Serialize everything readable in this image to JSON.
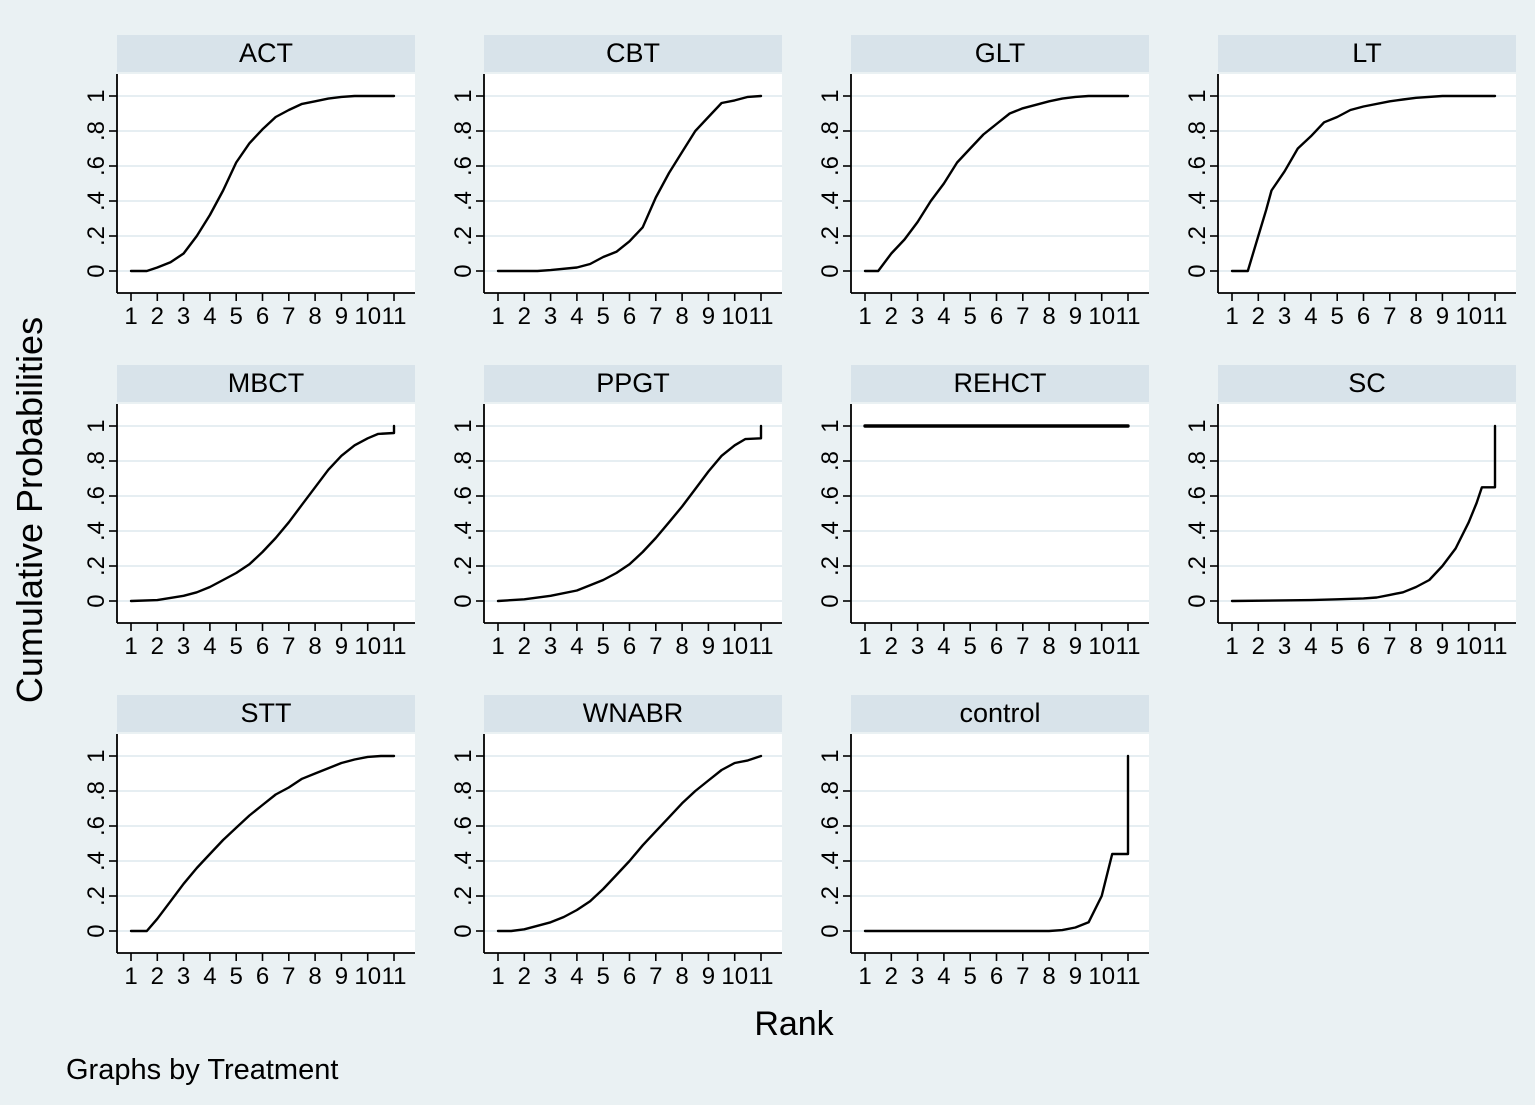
{
  "figure": {
    "ylabel": "Cumulative Probabilities",
    "xlabel": "Rank",
    "note": "Graphs by Treatment",
    "layout": {
      "rows": 3,
      "cols": 4,
      "panel_count": 11
    }
  },
  "axes": {
    "x_range": [
      1,
      11
    ],
    "y_range": [
      0,
      1
    ],
    "grid": true,
    "x_tick_values": [
      1,
      2,
      3,
      4,
      5,
      6,
      7,
      8,
      9,
      10,
      11
    ],
    "x_tick_labels": [
      "1",
      "2",
      "3",
      "4",
      "5",
      "6",
      "7",
      "8",
      "9",
      "10",
      "11"
    ],
    "y_tick_values": [
      0,
      0.2,
      0.4,
      0.6,
      0.8,
      1
    ],
    "y_tick_labels": [
      "0",
      ".2",
      ".4",
      ".6",
      ".8",
      "1"
    ],
    "y_tick_angle_deg": 90
  },
  "colors": {
    "background": "#eaf1f3",
    "panel_title_bg": "#d8e3ea",
    "plot_bg": "#ffffff",
    "gridline": "#dde9ed",
    "axis": "#000000",
    "line": "#000000"
  },
  "chart_data": [
    {
      "type": "line",
      "title": "ACT",
      "xlabel": "Rank",
      "ylabel": "Cumulative Probabilities",
      "points": [
        [
          1,
          0
        ],
        [
          1.6,
          0
        ],
        [
          2,
          0.02
        ],
        [
          2.5,
          0.05
        ],
        [
          3,
          0.1
        ],
        [
          3.5,
          0.2
        ],
        [
          4,
          0.32
        ],
        [
          4.5,
          0.46
        ],
        [
          5,
          0.62
        ],
        [
          5.5,
          0.73
        ],
        [
          6,
          0.81
        ],
        [
          6.5,
          0.88
        ],
        [
          7,
          0.92
        ],
        [
          7.5,
          0.955
        ],
        [
          8,
          0.97
        ],
        [
          8.5,
          0.985
        ],
        [
          9,
          0.995
        ],
        [
          9.5,
          1
        ],
        [
          11,
          1
        ]
      ]
    },
    {
      "type": "line",
      "title": "CBT",
      "xlabel": "Rank",
      "ylabel": "Cumulative Probabilities",
      "points": [
        [
          1,
          0
        ],
        [
          2.5,
          0
        ],
        [
          3,
          0.005
        ],
        [
          4,
          0.02
        ],
        [
          4.5,
          0.04
        ],
        [
          5,
          0.08
        ],
        [
          5.5,
          0.11
        ],
        [
          6,
          0.17
        ],
        [
          6.5,
          0.25
        ],
        [
          7,
          0.42
        ],
        [
          7.5,
          0.56
        ],
        [
          8,
          0.68
        ],
        [
          8.5,
          0.8
        ],
        [
          9,
          0.88
        ],
        [
          9.5,
          0.96
        ],
        [
          10,
          0.975
        ],
        [
          10.5,
          0.995
        ],
        [
          11,
          1
        ]
      ]
    },
    {
      "type": "line",
      "title": "GLT",
      "xlabel": "Rank",
      "ylabel": "Cumulative Probabilities",
      "points": [
        [
          1,
          0
        ],
        [
          1.5,
          0
        ],
        [
          2,
          0.1
        ],
        [
          2.5,
          0.18
        ],
        [
          3,
          0.28
        ],
        [
          3.5,
          0.4
        ],
        [
          4,
          0.5
        ],
        [
          4.5,
          0.62
        ],
        [
          5,
          0.7
        ],
        [
          5.5,
          0.78
        ],
        [
          6,
          0.84
        ],
        [
          6.5,
          0.9
        ],
        [
          7,
          0.93
        ],
        [
          7.5,
          0.95
        ],
        [
          8,
          0.97
        ],
        [
          8.5,
          0.985
        ],
        [
          9,
          0.995
        ],
        [
          9.5,
          1
        ],
        [
          11,
          1
        ]
      ]
    },
    {
      "type": "line",
      "title": "LT",
      "xlabel": "Rank",
      "ylabel": "Cumulative Probabilities",
      "points": [
        [
          1,
          0
        ],
        [
          1.6,
          0
        ],
        [
          2,
          0.2
        ],
        [
          2.3,
          0.35
        ],
        [
          2.5,
          0.46
        ],
        [
          3,
          0.57
        ],
        [
          3.5,
          0.7
        ],
        [
          4,
          0.77
        ],
        [
          4.5,
          0.85
        ],
        [
          5,
          0.88
        ],
        [
          5.5,
          0.92
        ],
        [
          6,
          0.94
        ],
        [
          7,
          0.97
        ],
        [
          7.5,
          0.98
        ],
        [
          8,
          0.99
        ],
        [
          9,
          1
        ],
        [
          11,
          1
        ]
      ]
    },
    {
      "type": "line",
      "title": "MBCT",
      "xlabel": "Rank",
      "ylabel": "Cumulative Probabilities",
      "points": [
        [
          1,
          0
        ],
        [
          2,
          0.005
        ],
        [
          3,
          0.03
        ],
        [
          3.5,
          0.05
        ],
        [
          4,
          0.08
        ],
        [
          4.5,
          0.12
        ],
        [
          5,
          0.16
        ],
        [
          5.5,
          0.21
        ],
        [
          6,
          0.28
        ],
        [
          6.5,
          0.36
        ],
        [
          7,
          0.45
        ],
        [
          7.5,
          0.55
        ],
        [
          8,
          0.65
        ],
        [
          8.5,
          0.75
        ],
        [
          9,
          0.83
        ],
        [
          9.5,
          0.89
        ],
        [
          10,
          0.93
        ],
        [
          10.4,
          0.955
        ],
        [
          11,
          0.96
        ],
        [
          11,
          1
        ]
      ]
    },
    {
      "type": "line",
      "title": "PPGT",
      "xlabel": "Rank",
      "ylabel": "Cumulative Probabilities",
      "points": [
        [
          1,
          0
        ],
        [
          2,
          0.01
        ],
        [
          3,
          0.03
        ],
        [
          4,
          0.06
        ],
        [
          4.5,
          0.09
        ],
        [
          5,
          0.12
        ],
        [
          5.5,
          0.16
        ],
        [
          6,
          0.21
        ],
        [
          6.5,
          0.28
        ],
        [
          7,
          0.36
        ],
        [
          7.5,
          0.45
        ],
        [
          8,
          0.54
        ],
        [
          8.5,
          0.64
        ],
        [
          9,
          0.74
        ],
        [
          9.5,
          0.83
        ],
        [
          10,
          0.89
        ],
        [
          10.4,
          0.925
        ],
        [
          11,
          0.93
        ],
        [
          11,
          1
        ]
      ]
    },
    {
      "type": "line",
      "title": "REHCT",
      "xlabel": "Rank",
      "ylabel": "Cumulative Probabilities",
      "line_width": 3.4,
      "points": [
        [
          1,
          1
        ],
        [
          11,
          1
        ]
      ]
    },
    {
      "type": "line",
      "title": "SC",
      "xlabel": "Rank",
      "ylabel": "Cumulative Probabilities",
      "points": [
        [
          1,
          0
        ],
        [
          4,
          0.005
        ],
        [
          5,
          0.01
        ],
        [
          6,
          0.015
        ],
        [
          6.5,
          0.02
        ],
        [
          7,
          0.035
        ],
        [
          7.5,
          0.05
        ],
        [
          8,
          0.08
        ],
        [
          8.5,
          0.12
        ],
        [
          9,
          0.2
        ],
        [
          9.5,
          0.3
        ],
        [
          10,
          0.45
        ],
        [
          10.3,
          0.56
        ],
        [
          10.5,
          0.65
        ],
        [
          11,
          0.65
        ],
        [
          11,
          1
        ]
      ]
    },
    {
      "type": "line",
      "title": "STT",
      "xlabel": "Rank",
      "ylabel": "Cumulative Probabilities",
      "points": [
        [
          1,
          0
        ],
        [
          1.6,
          0
        ],
        [
          2,
          0.07
        ],
        [
          2.5,
          0.17
        ],
        [
          3,
          0.27
        ],
        [
          3.5,
          0.36
        ],
        [
          4,
          0.44
        ],
        [
          4.5,
          0.52
        ],
        [
          5,
          0.59
        ],
        [
          5.5,
          0.66
        ],
        [
          6,
          0.72
        ],
        [
          6.5,
          0.78
        ],
        [
          7,
          0.82
        ],
        [
          7.5,
          0.87
        ],
        [
          8,
          0.9
        ],
        [
          8.5,
          0.93
        ],
        [
          9,
          0.96
        ],
        [
          9.5,
          0.98
        ],
        [
          10,
          0.995
        ],
        [
          10.5,
          1
        ],
        [
          11,
          1
        ]
      ]
    },
    {
      "type": "line",
      "title": "WNABR",
      "xlabel": "Rank",
      "ylabel": "Cumulative Probabilities",
      "points": [
        [
          1,
          0
        ],
        [
          1.5,
          0
        ],
        [
          2,
          0.01
        ],
        [
          2.5,
          0.03
        ],
        [
          3,
          0.05
        ],
        [
          3.5,
          0.08
        ],
        [
          4,
          0.12
        ],
        [
          4.5,
          0.17
        ],
        [
          5,
          0.24
        ],
        [
          5.5,
          0.32
        ],
        [
          6,
          0.4
        ],
        [
          6.5,
          0.49
        ],
        [
          7,
          0.57
        ],
        [
          7.5,
          0.65
        ],
        [
          8,
          0.73
        ],
        [
          8.5,
          0.8
        ],
        [
          9,
          0.86
        ],
        [
          9.5,
          0.92
        ],
        [
          10,
          0.96
        ],
        [
          10.5,
          0.975
        ],
        [
          11,
          1
        ]
      ]
    },
    {
      "type": "line",
      "title": "control",
      "xlabel": "Rank",
      "ylabel": "Cumulative Probabilities",
      "points": [
        [
          1,
          0
        ],
        [
          8,
          0
        ],
        [
          8.5,
          0.005
        ],
        [
          9,
          0.02
        ],
        [
          9.5,
          0.05
        ],
        [
          10,
          0.2
        ],
        [
          10.4,
          0.44
        ],
        [
          11,
          0.44
        ],
        [
          11,
          1
        ]
      ]
    }
  ]
}
